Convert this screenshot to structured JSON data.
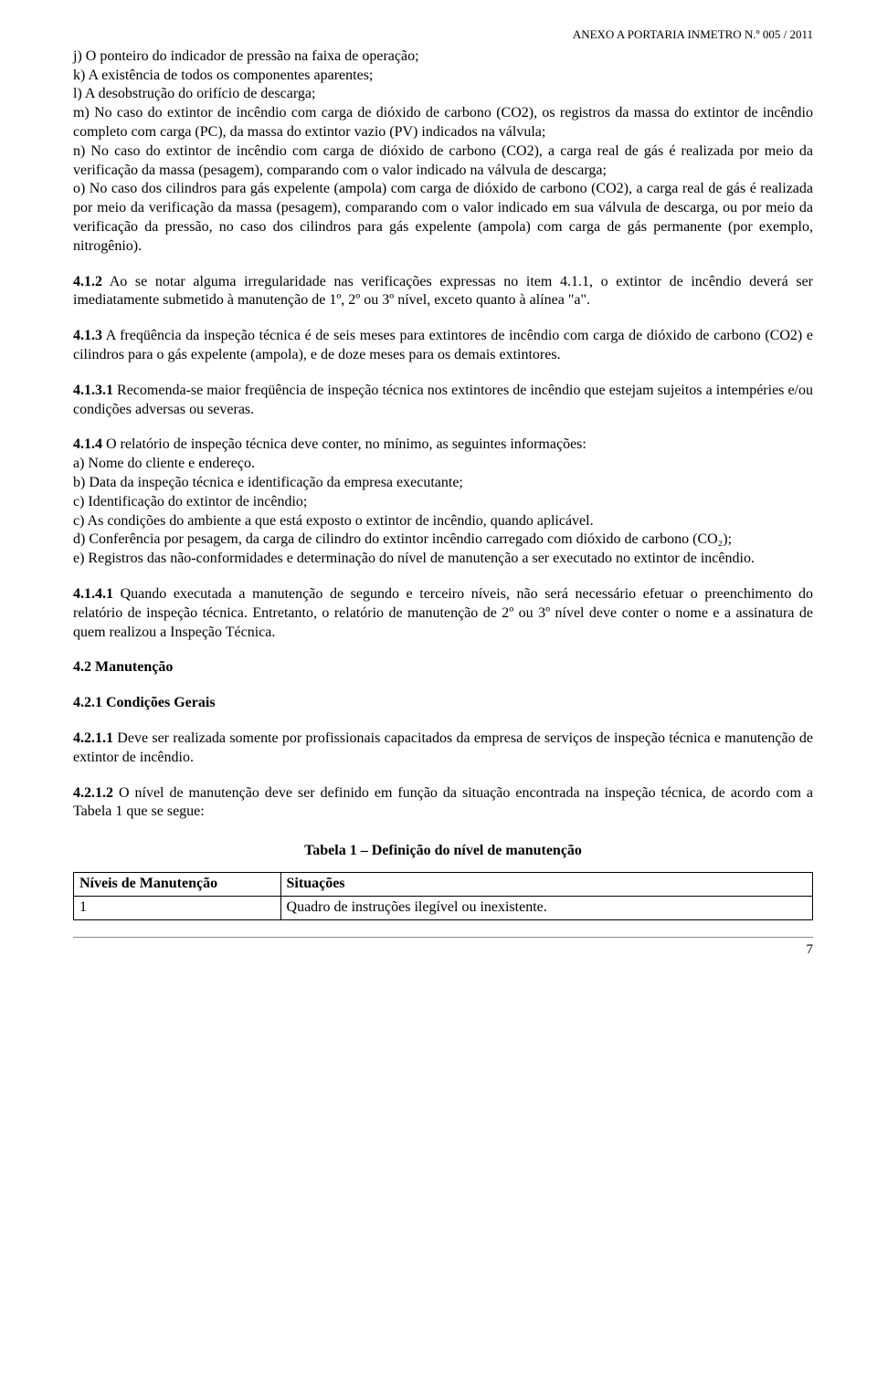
{
  "header": {
    "annex": "ANEXO A PORTARIA INMETRO N.º 005 / 2011"
  },
  "body": {
    "j": "j)  O ponteiro do indicador de pressão na faixa de operação;",
    "k": "k)  A existência de todos os componentes aparentes;",
    "l": "l)  A desobstrução do orifício de descarga;",
    "mno": "m) No caso do extintor de incêndio com carga de dióxido de carbono (CO2), os registros da massa do extintor de incêndio completo com carga (PC), da massa do extintor vazio (PV) indicados na válvula;\nn) No caso do extintor de incêndio com carga de dióxido de carbono (CO2), a carga real de gás é realizada por meio da verificação da massa (pesagem), comparando com o valor indicado na válvula de descarga;\no) No caso dos cilindros para gás expelente (ampola) com carga de dióxido de carbono (CO2), a carga real de gás é realizada por meio da verificação da massa (pesagem), comparando com o valor indicado em sua válvula de descarga, ou por meio da verificação da pressão, no caso dos cilindros para gás expelente (ampola) com carga de gás permanente (por exemplo, nitrogênio).",
    "p412_lead": "4.1.2",
    "p412_text": " Ao se notar alguma irregularidade nas verificações expressas no item 4.1.1, o extintor de incêndio deverá ser imediatamente submetido à manutenção de 1º, 2º ou 3º nível, exceto quanto à alínea \"a\".",
    "p413_lead": "4.1.3",
    "p413_text": " A freqüência da inspeção técnica é de seis meses para extintores de incêndio com carga de dióxido de carbono (CO2) e cilindros para o gás expelente (ampola), e de doze meses para os demais extintores.",
    "p4131_lead": "4.1.3.1",
    "p4131_text": " Recomenda-se maior freqüência de inspeção técnica nos extintores de incêndio que estejam sujeitos a intempéries e/ou condições adversas ou severas.",
    "p414_lead": "4.1.4",
    "p414_text": " O relatório de inspeção técnica deve conter, no mínimo, as seguintes informações:",
    "p414_a": "a) Nome do cliente e endereço.",
    "p414_b": "b) Data da inspeção técnica e identificação da empresa executante;",
    "p414_c1": "c) Identificação do extintor de incêndio;",
    "p414_c2": "c)  As condições do ambiente a que está exposto o extintor de incêndio, quando aplicável.",
    "p414_d": "d)  Conferência por pesagem, da carga de cilindro do extintor incêndio carregado com dióxido de carbono (CO₂);",
    "p414_e": "e) Registros das não-conformidades e determinação do nível de manutenção a ser executado no extintor de incêndio.",
    "p4141_lead": "4.1.4.1",
    "p4141_text": " Quando executada a manutenção de segundo e terceiro níveis, não será necessário efetuar o preenchimento do relatório de inspeção técnica. Entretanto, o relatório de manutenção de 2º ou 3º nível deve conter o nome e a assinatura de quem realizou a Inspeção Técnica.",
    "h42": "4.2 Manutenção",
    "h421": "4.2.1  Condições Gerais",
    "p4211_lead": "4.2.1.1",
    "p4211_text": " Deve ser realizada somente por profissionais capacitados da empresa de serviços de inspeção técnica e manutenção de extintor de incêndio.",
    "p4212_lead": "4.2.1.2",
    "p4212_text": " O nível de manutenção deve ser definido em função da situação encontrada na inspeção técnica, de acordo com a Tabela 1 que se segue:",
    "table_title": "Tabela 1 – Definição do nível de manutenção"
  },
  "table": {
    "header": {
      "col1": "Níveis de Manutenção",
      "col2": "Situações"
    },
    "row1": {
      "col1": "1",
      "col2": "Quadro de instruções ilegível ou inexistente."
    }
  },
  "footer": {
    "page": "7"
  }
}
